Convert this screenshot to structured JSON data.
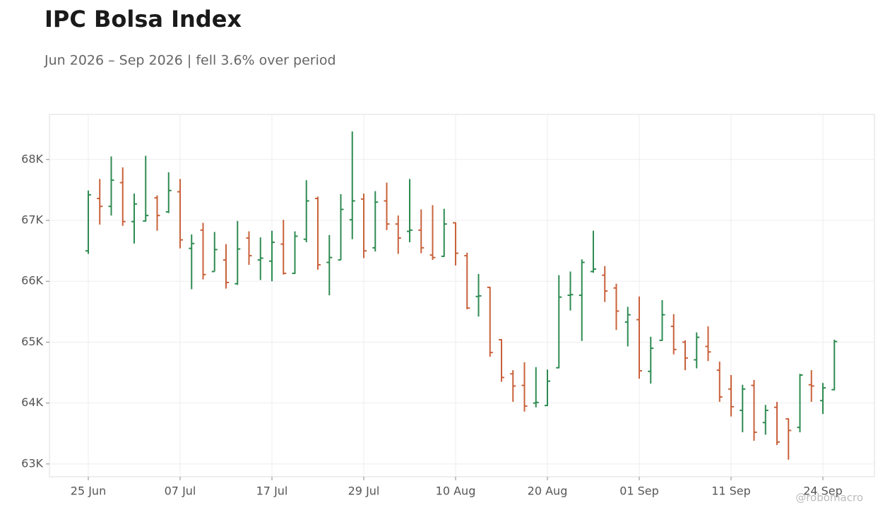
{
  "chart_data": {
    "type": "ohlc",
    "title": "IPC Bolsa Index",
    "subtitle": "Jun 2026 – Sep 2026 | fell 3.6% over period",
    "watermark": "@robomacro",
    "categories": [
      "25 Jun",
      null,
      null,
      null,
      null,
      null,
      null,
      null,
      "07 Jul",
      null,
      null,
      null,
      null,
      null,
      null,
      null,
      "17 Jul",
      null,
      null,
      null,
      null,
      null,
      null,
      null,
      "29 Jul",
      null,
      null,
      null,
      null,
      null,
      null,
      null,
      "10 Aug",
      null,
      null,
      null,
      null,
      null,
      null,
      null,
      "20 Aug",
      null,
      null,
      null,
      null,
      null,
      null,
      null,
      "01 Sep",
      null,
      null,
      null,
      null,
      null,
      null,
      null,
      "11 Sep",
      null,
      null,
      null,
      null,
      null,
      null,
      null,
      "24 Sep",
      null
    ],
    "open": [
      66500,
      67360,
      67230,
      67620,
      66980,
      66990,
      67370,
      67140,
      67470,
      66540,
      66840,
      66160,
      66350,
      65960,
      66710,
      66350,
      66330,
      66610,
      66130,
      66690,
      67360,
      66310,
      66350,
      67010,
      67350,
      66550,
      67320,
      66940,
      66820,
      66840,
      66430,
      66410,
      66960,
      66420,
      65750,
      65900,
      65040,
      64480,
      64290,
      64000,
      63960,
      64580,
      65770,
      65770,
      66160,
      66100,
      65890,
      65330,
      65370,
      64520,
      65030,
      65260,
      65000,
      64710,
      64930,
      64540,
      64230,
      63880,
      64290,
      63680,
      63930,
      63740,
      63600,
      64300,
      64040,
      64220
    ],
    "high": [
      67490,
      67680,
      68050,
      67870,
      67440,
      68060,
      67410,
      67790,
      67680,
      66770,
      66960,
      66810,
      66610,
      66990,
      66820,
      66720,
      66830,
      67010,
      66820,
      67660,
      67390,
      66760,
      67430,
      68460,
      67440,
      67480,
      67620,
      67080,
      67680,
      67180,
      67250,
      67190,
      66970,
      66470,
      66120,
      65910,
      65050,
      64540,
      64670,
      64590,
      64550,
      66100,
      66160,
      66360,
      66830,
      66250,
      65960,
      65580,
      65750,
      65090,
      65690,
      65460,
      65030,
      65160,
      65260,
      64680,
      64460,
      64300,
      64380,
      63970,
      64020,
      63750,
      64480,
      64540,
      64330,
      65040
    ],
    "low": [
      66450,
      66930,
      67080,
      66910,
      66620,
      66980,
      66830,
      67120,
      66540,
      65870,
      66030,
      66160,
      65880,
      65940,
      66270,
      66020,
      66000,
      66110,
      66120,
      66640,
      66190,
      65770,
      66350,
      66690,
      66380,
      66490,
      66840,
      66450,
      66640,
      66460,
      66350,
      66400,
      66260,
      65540,
      65420,
      64760,
      64350,
      64020,
      63860,
      63930,
      63950,
      64570,
      65520,
      65020,
      66140,
      65660,
      65200,
      64930,
      64400,
      64320,
      65020,
      64800,
      64540,
      64570,
      64690,
      64020,
      63780,
      63520,
      63380,
      63480,
      63310,
      63070,
      63520,
      64020,
      63820,
      64210
    ],
    "close": [
      67420,
      67230,
      67660,
      66980,
      67270,
      67080,
      67080,
      67490,
      66680,
      66620,
      66110,
      66520,
      65980,
      66530,
      66420,
      66380,
      66640,
      66130,
      66740,
      67320,
      66270,
      66390,
      67180,
      67320,
      66500,
      67300,
      66940,
      66710,
      66840,
      66550,
      66390,
      66940,
      66460,
      65560,
      65760,
      64830,
      64420,
      64280,
      63950,
      64010,
      64360,
      65740,
      65780,
      66310,
      66200,
      65840,
      65510,
      65450,
      64530,
      64900,
      65450,
      64880,
      64740,
      65080,
      64840,
      64100,
      63940,
      64230,
      63520,
      63880,
      63360,
      63550,
      64460,
      64280,
      64250,
      65010
    ],
    "up_color": "#2e8b50",
    "down_color": "#c8613a",
    "ylim": [
      62790,
      68740
    ],
    "yticks": [
      {
        "value": 63000,
        "label": "63K"
      },
      {
        "value": 64000,
        "label": "64K"
      },
      {
        "value": 65000,
        "label": "65K"
      },
      {
        "value": 66000,
        "label": "66K"
      },
      {
        "value": 67000,
        "label": "67K"
      },
      {
        "value": 68000,
        "label": "68K"
      }
    ],
    "grid": true
  }
}
